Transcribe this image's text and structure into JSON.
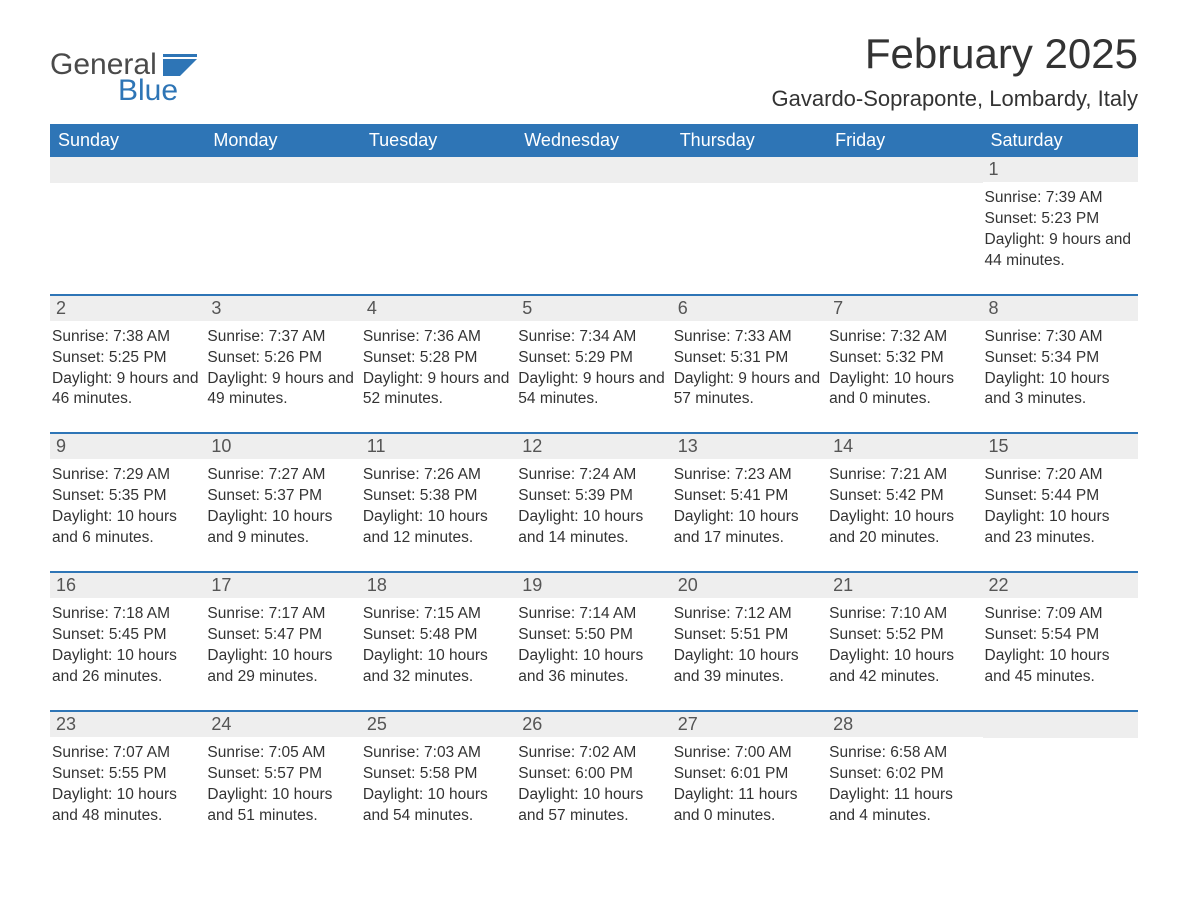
{
  "brand": {
    "name1": "General",
    "name2": "Blue",
    "logo_color": "#2e75b6"
  },
  "title": "February 2025",
  "location": "Gavardo-Sopraponte, Lombardy, Italy",
  "colors": {
    "header_bg": "#2e75b6",
    "header_text": "#ffffff",
    "daynum_bg": "#eeeeee",
    "week_divider": "#2e75b6",
    "body_text": "#333333",
    "background": "#ffffff"
  },
  "fonts": {
    "title_size": 42,
    "location_size": 22,
    "weekday_size": 18,
    "daynum_size": 18,
    "body_size": 15.5
  },
  "weekdays": [
    "Sunday",
    "Monday",
    "Tuesday",
    "Wednesday",
    "Thursday",
    "Friday",
    "Saturday"
  ],
  "weeks": [
    [
      {
        "day": "",
        "sunrise": "",
        "sunset": "",
        "daylight": ""
      },
      {
        "day": "",
        "sunrise": "",
        "sunset": "",
        "daylight": ""
      },
      {
        "day": "",
        "sunrise": "",
        "sunset": "",
        "daylight": ""
      },
      {
        "day": "",
        "sunrise": "",
        "sunset": "",
        "daylight": ""
      },
      {
        "day": "",
        "sunrise": "",
        "sunset": "",
        "daylight": ""
      },
      {
        "day": "",
        "sunrise": "",
        "sunset": "",
        "daylight": ""
      },
      {
        "day": "1",
        "sunrise": "Sunrise: 7:39 AM",
        "sunset": "Sunset: 5:23 PM",
        "daylight": "Daylight: 9 hours and 44 minutes."
      }
    ],
    [
      {
        "day": "2",
        "sunrise": "Sunrise: 7:38 AM",
        "sunset": "Sunset: 5:25 PM",
        "daylight": "Daylight: 9 hours and 46 minutes."
      },
      {
        "day": "3",
        "sunrise": "Sunrise: 7:37 AM",
        "sunset": "Sunset: 5:26 PM",
        "daylight": "Daylight: 9 hours and 49 minutes."
      },
      {
        "day": "4",
        "sunrise": "Sunrise: 7:36 AM",
        "sunset": "Sunset: 5:28 PM",
        "daylight": "Daylight: 9 hours and 52 minutes."
      },
      {
        "day": "5",
        "sunrise": "Sunrise: 7:34 AM",
        "sunset": "Sunset: 5:29 PM",
        "daylight": "Daylight: 9 hours and 54 minutes."
      },
      {
        "day": "6",
        "sunrise": "Sunrise: 7:33 AM",
        "sunset": "Sunset: 5:31 PM",
        "daylight": "Daylight: 9 hours and 57 minutes."
      },
      {
        "day": "7",
        "sunrise": "Sunrise: 7:32 AM",
        "sunset": "Sunset: 5:32 PM",
        "daylight": "Daylight: 10 hours and 0 minutes."
      },
      {
        "day": "8",
        "sunrise": "Sunrise: 7:30 AM",
        "sunset": "Sunset: 5:34 PM",
        "daylight": "Daylight: 10 hours and 3 minutes."
      }
    ],
    [
      {
        "day": "9",
        "sunrise": "Sunrise: 7:29 AM",
        "sunset": "Sunset: 5:35 PM",
        "daylight": "Daylight: 10 hours and 6 minutes."
      },
      {
        "day": "10",
        "sunrise": "Sunrise: 7:27 AM",
        "sunset": "Sunset: 5:37 PM",
        "daylight": "Daylight: 10 hours and 9 minutes."
      },
      {
        "day": "11",
        "sunrise": "Sunrise: 7:26 AM",
        "sunset": "Sunset: 5:38 PM",
        "daylight": "Daylight: 10 hours and 12 minutes."
      },
      {
        "day": "12",
        "sunrise": "Sunrise: 7:24 AM",
        "sunset": "Sunset: 5:39 PM",
        "daylight": "Daylight: 10 hours and 14 minutes."
      },
      {
        "day": "13",
        "sunrise": "Sunrise: 7:23 AM",
        "sunset": "Sunset: 5:41 PM",
        "daylight": "Daylight: 10 hours and 17 minutes."
      },
      {
        "day": "14",
        "sunrise": "Sunrise: 7:21 AM",
        "sunset": "Sunset: 5:42 PM",
        "daylight": "Daylight: 10 hours and 20 minutes."
      },
      {
        "day": "15",
        "sunrise": "Sunrise: 7:20 AM",
        "sunset": "Sunset: 5:44 PM",
        "daylight": "Daylight: 10 hours and 23 minutes."
      }
    ],
    [
      {
        "day": "16",
        "sunrise": "Sunrise: 7:18 AM",
        "sunset": "Sunset: 5:45 PM",
        "daylight": "Daylight: 10 hours and 26 minutes."
      },
      {
        "day": "17",
        "sunrise": "Sunrise: 7:17 AM",
        "sunset": "Sunset: 5:47 PM",
        "daylight": "Daylight: 10 hours and 29 minutes."
      },
      {
        "day": "18",
        "sunrise": "Sunrise: 7:15 AM",
        "sunset": "Sunset: 5:48 PM",
        "daylight": "Daylight: 10 hours and 32 minutes."
      },
      {
        "day": "19",
        "sunrise": "Sunrise: 7:14 AM",
        "sunset": "Sunset: 5:50 PM",
        "daylight": "Daylight: 10 hours and 36 minutes."
      },
      {
        "day": "20",
        "sunrise": "Sunrise: 7:12 AM",
        "sunset": "Sunset: 5:51 PM",
        "daylight": "Daylight: 10 hours and 39 minutes."
      },
      {
        "day": "21",
        "sunrise": "Sunrise: 7:10 AM",
        "sunset": "Sunset: 5:52 PM",
        "daylight": "Daylight: 10 hours and 42 minutes."
      },
      {
        "day": "22",
        "sunrise": "Sunrise: 7:09 AM",
        "sunset": "Sunset: 5:54 PM",
        "daylight": "Daylight: 10 hours and 45 minutes."
      }
    ],
    [
      {
        "day": "23",
        "sunrise": "Sunrise: 7:07 AM",
        "sunset": "Sunset: 5:55 PM",
        "daylight": "Daylight: 10 hours and 48 minutes."
      },
      {
        "day": "24",
        "sunrise": "Sunrise: 7:05 AM",
        "sunset": "Sunset: 5:57 PM",
        "daylight": "Daylight: 10 hours and 51 minutes."
      },
      {
        "day": "25",
        "sunrise": "Sunrise: 7:03 AM",
        "sunset": "Sunset: 5:58 PM",
        "daylight": "Daylight: 10 hours and 54 minutes."
      },
      {
        "day": "26",
        "sunrise": "Sunrise: 7:02 AM",
        "sunset": "Sunset: 6:00 PM",
        "daylight": "Daylight: 10 hours and 57 minutes."
      },
      {
        "day": "27",
        "sunrise": "Sunrise: 7:00 AM",
        "sunset": "Sunset: 6:01 PM",
        "daylight": "Daylight: 11 hours and 0 minutes."
      },
      {
        "day": "28",
        "sunrise": "Sunrise: 6:58 AM",
        "sunset": "Sunset: 6:02 PM",
        "daylight": "Daylight: 11 hours and 4 minutes."
      },
      {
        "day": "",
        "sunrise": "",
        "sunset": "",
        "daylight": ""
      }
    ]
  ]
}
